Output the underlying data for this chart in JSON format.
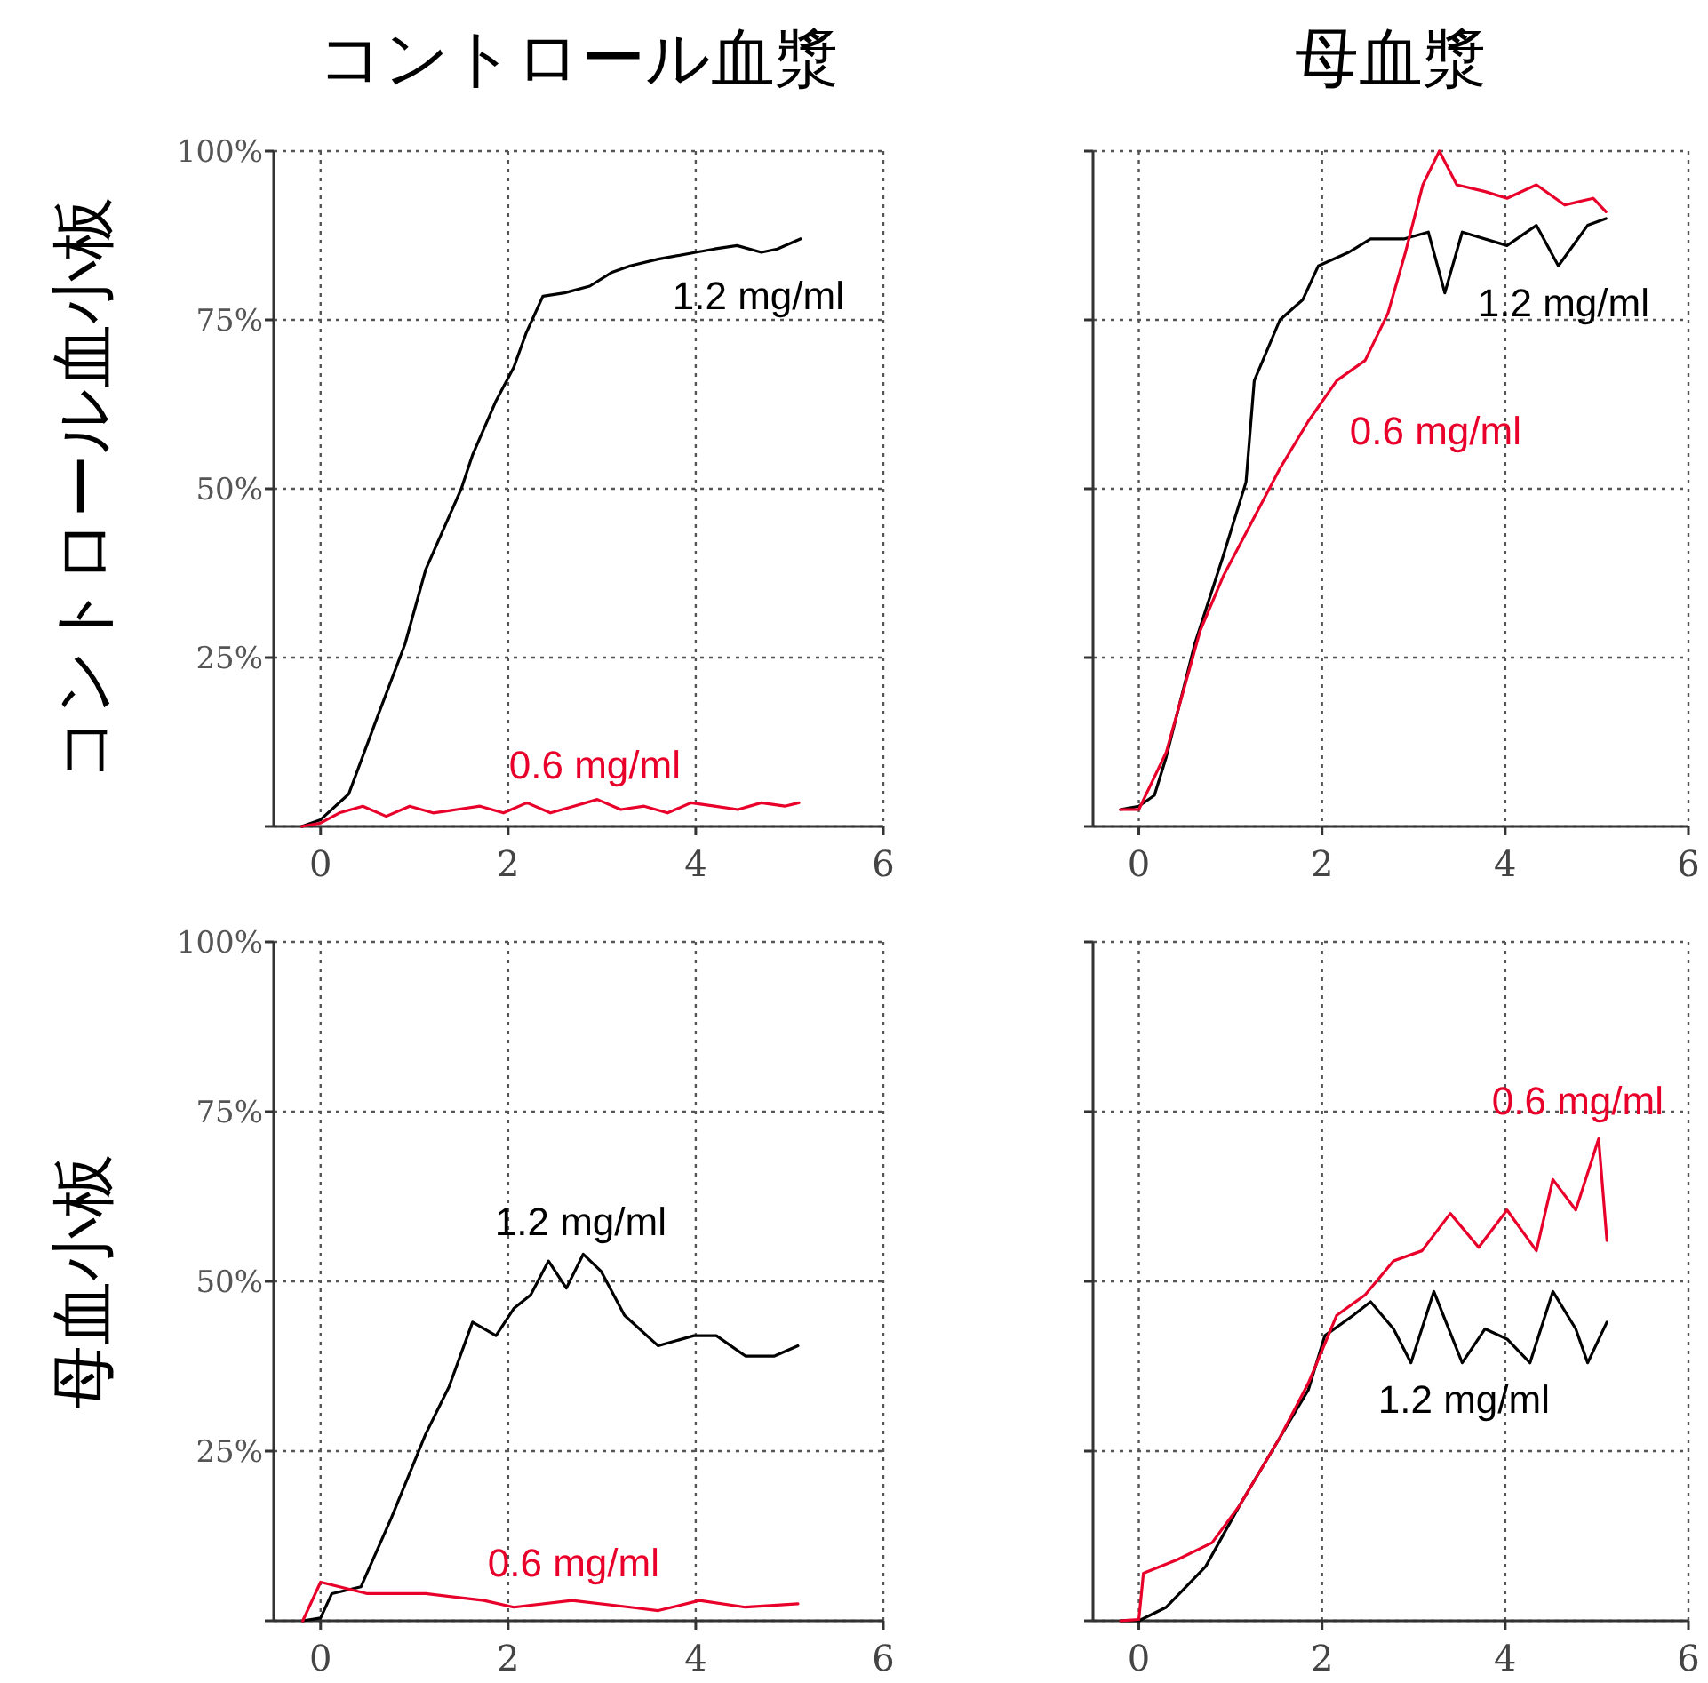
{
  "chart_data": [
    {
      "type": "line",
      "title": "コントロール血漿",
      "ylabel": "コントロール血小板",
      "xlim": [
        -0.5,
        6
      ],
      "xticks": [
        0,
        2,
        4,
        6
      ],
      "ylim": [
        0,
        100
      ],
      "yticks": [
        {
          "value": 0,
          "label": null
        },
        {
          "value": 25,
          "label": "25%"
        },
        {
          "value": 50,
          "label": "50%"
        },
        {
          "value": 75,
          "label": "75%"
        },
        {
          "value": 100,
          "label": "100%"
        }
      ],
      "grid": true,
      "series": [
        {
          "name": "1.2 mg/ml",
          "color": "#000000",
          "x": [
            -0.2,
            0,
            0.3,
            0.6,
            0.9,
            1.12,
            1.31,
            1.5,
            1.62,
            1.87,
            2.06,
            2.19,
            2.37,
            2.6,
            2.87,
            3.1,
            3.3,
            3.6,
            4.0,
            4.2,
            4.44,
            4.7,
            4.87,
            5.12
          ],
          "values": [
            0,
            1,
            4.8,
            16,
            27,
            38,
            44,
            50,
            55,
            63,
            68,
            73,
            78.5,
            79,
            80,
            82,
            83,
            84,
            85,
            85.5,
            86,
            85,
            85.5,
            87
          ]
        },
        {
          "name": "0.6 mg/ml",
          "color": "#e8002a",
          "x": [
            -0.2,
            0,
            0.2,
            0.45,
            0.7,
            0.95,
            1.2,
            1.45,
            1.7,
            1.95,
            2.2,
            2.45,
            2.7,
            2.95,
            3.2,
            3.45,
            3.7,
            3.95,
            4.2,
            4.45,
            4.7,
            4.95,
            5.1
          ],
          "values": [
            0,
            0.5,
            2,
            3,
            1.5,
            3,
            2,
            2.5,
            3,
            2,
            3.5,
            2,
            3,
            4,
            2.5,
            3,
            2,
            3.5,
            3,
            2.5,
            3.5,
            3,
            3.5
          ]
        }
      ]
    },
    {
      "type": "line",
      "title": "母血漿",
      "xlim": [
        -0.5,
        6
      ],
      "xticks": [
        0,
        2,
        4,
        6
      ],
      "ylim": [
        0,
        100
      ],
      "yticks": [
        {
          "value": 0,
          "label": null
        },
        {
          "value": 25,
          "label": "25%"
        },
        {
          "value": 50,
          "label": "50%"
        },
        {
          "value": 75,
          "label": "75%"
        },
        {
          "value": 100,
          "label": "100%"
        }
      ],
      "grid": true,
      "tick_labels": "x",
      "series": [
        {
          "name": "1.2 mg/ml",
          "color": "#000000",
          "x": [
            -0.2,
            0,
            0.17,
            0.3,
            0.61,
            0.92,
            1.17,
            1.26,
            1.54,
            1.79,
            1.96,
            2.29,
            2.53,
            2.9,
            3.16,
            3.34,
            3.53,
            4.02,
            4.34,
            4.58,
            4.9,
            5.1
          ],
          "values": [
            2.5,
            3,
            4.6,
            10.3,
            27,
            40,
            51,
            66,
            75,
            78,
            83,
            85,
            87,
            87,
            88,
            79,
            88,
            86,
            89,
            83,
            89,
            90
          ]
        },
        {
          "name": "0.6 mg/ml",
          "color": "#e8002a",
          "x": [
            -0.2,
            0,
            0.3,
            0.67,
            0.92,
            1.23,
            1.54,
            1.85,
            2.16,
            2.47,
            2.72,
            2.91,
            3.1,
            3.28,
            3.47,
            3.78,
            4.02,
            4.34,
            4.65,
            4.96,
            5.1
          ],
          "values": [
            2.5,
            2.5,
            11,
            29,
            37,
            45,
            53,
            60,
            66,
            69,
            76,
            85,
            95,
            100,
            95,
            94,
            93,
            95,
            92,
            93,
            91
          ]
        }
      ]
    },
    {
      "type": "line",
      "ylabel": "母血小板",
      "xlim": [
        -0.5,
        6
      ],
      "xticks": [
        0,
        2,
        4,
        6
      ],
      "ylim": [
        0,
        100
      ],
      "yticks": [
        {
          "value": 0,
          "label": null
        },
        {
          "value": 25,
          "label": "25%"
        },
        {
          "value": 50,
          "label": "50%"
        },
        {
          "value": 75,
          "label": "75%"
        },
        {
          "value": 100,
          "label": "100%"
        }
      ],
      "grid": true,
      "series": [
        {
          "name": "1.2 mg/ml",
          "color": "#000000",
          "x": [
            -0.19,
            0,
            0.12,
            0.43,
            0.75,
            1.12,
            1.37,
            1.62,
            1.87,
            2.06,
            2.24,
            2.43,
            2.62,
            2.8,
            2.99,
            3.24,
            3.6,
            3.98,
            4.22,
            4.53,
            4.84,
            5.09
          ],
          "values": [
            0,
            0.4,
            4,
            5,
            15,
            27.5,
            34.5,
            44,
            42,
            46,
            48,
            53,
            49,
            54,
            51.5,
            45,
            40.5,
            42,
            42,
            39,
            39,
            40.5
          ]
        },
        {
          "name": "0.6 mg/ml",
          "color": "#e8002a",
          "x": [
            -0.19,
            0,
            0.5,
            1.12,
            1.74,
            2.06,
            2.68,
            3.3,
            3.6,
            4.04,
            4.53,
            5.09
          ],
          "values": [
            0,
            5.7,
            4,
            4,
            3,
            2,
            3,
            2,
            1.5,
            3,
            2,
            2.5
          ]
        }
      ]
    },
    {
      "type": "line",
      "xlim": [
        -0.5,
        6
      ],
      "xticks": [
        0,
        2,
        4,
        6
      ],
      "ylim": [
        0,
        100
      ],
      "yticks": [
        {
          "value": 0,
          "label": null
        },
        {
          "value": 25,
          "label": "25%"
        },
        {
          "value": 50,
          "label": "50%"
        },
        {
          "value": 75,
          "label": "75%"
        },
        {
          "value": 100,
          "label": "100%"
        }
      ],
      "grid": true,
      "tick_labels": "x",
      "series": [
        {
          "name": "1.2 mg/ml",
          "color": "#000000",
          "x": [
            -0.2,
            0,
            0.3,
            0.73,
            1.1,
            1.54,
            1.85,
            2.03,
            2.34,
            2.53,
            2.78,
            2.97,
            3.22,
            3.53,
            3.78,
            4.02,
            4.27,
            4.52,
            4.77,
            4.9,
            5.11
          ],
          "values": [
            0,
            0,
            2,
            8,
            17,
            27,
            34,
            42,
            45,
            47,
            43,
            38,
            48.5,
            38,
            43,
            41.5,
            38,
            48.5,
            43,
            38,
            44
          ]
        },
        {
          "name": "0.6 mg/ml",
          "color": "#e8002a",
          "x": [
            -0.2,
            0,
            0.05,
            0.42,
            0.8,
            1.1,
            1.54,
            1.85,
            2.16,
            2.47,
            2.78,
            3.09,
            3.4,
            3.71,
            4.02,
            4.34,
            4.52,
            4.77,
            5.02,
            5.11
          ],
          "values": [
            0,
            0.2,
            7,
            9,
            11.5,
            17,
            27,
            35,
            45,
            48,
            53,
            54.5,
            60,
            55,
            60.5,
            54.5,
            65,
            60.5,
            71,
            56
          ]
        }
      ]
    }
  ]
}
